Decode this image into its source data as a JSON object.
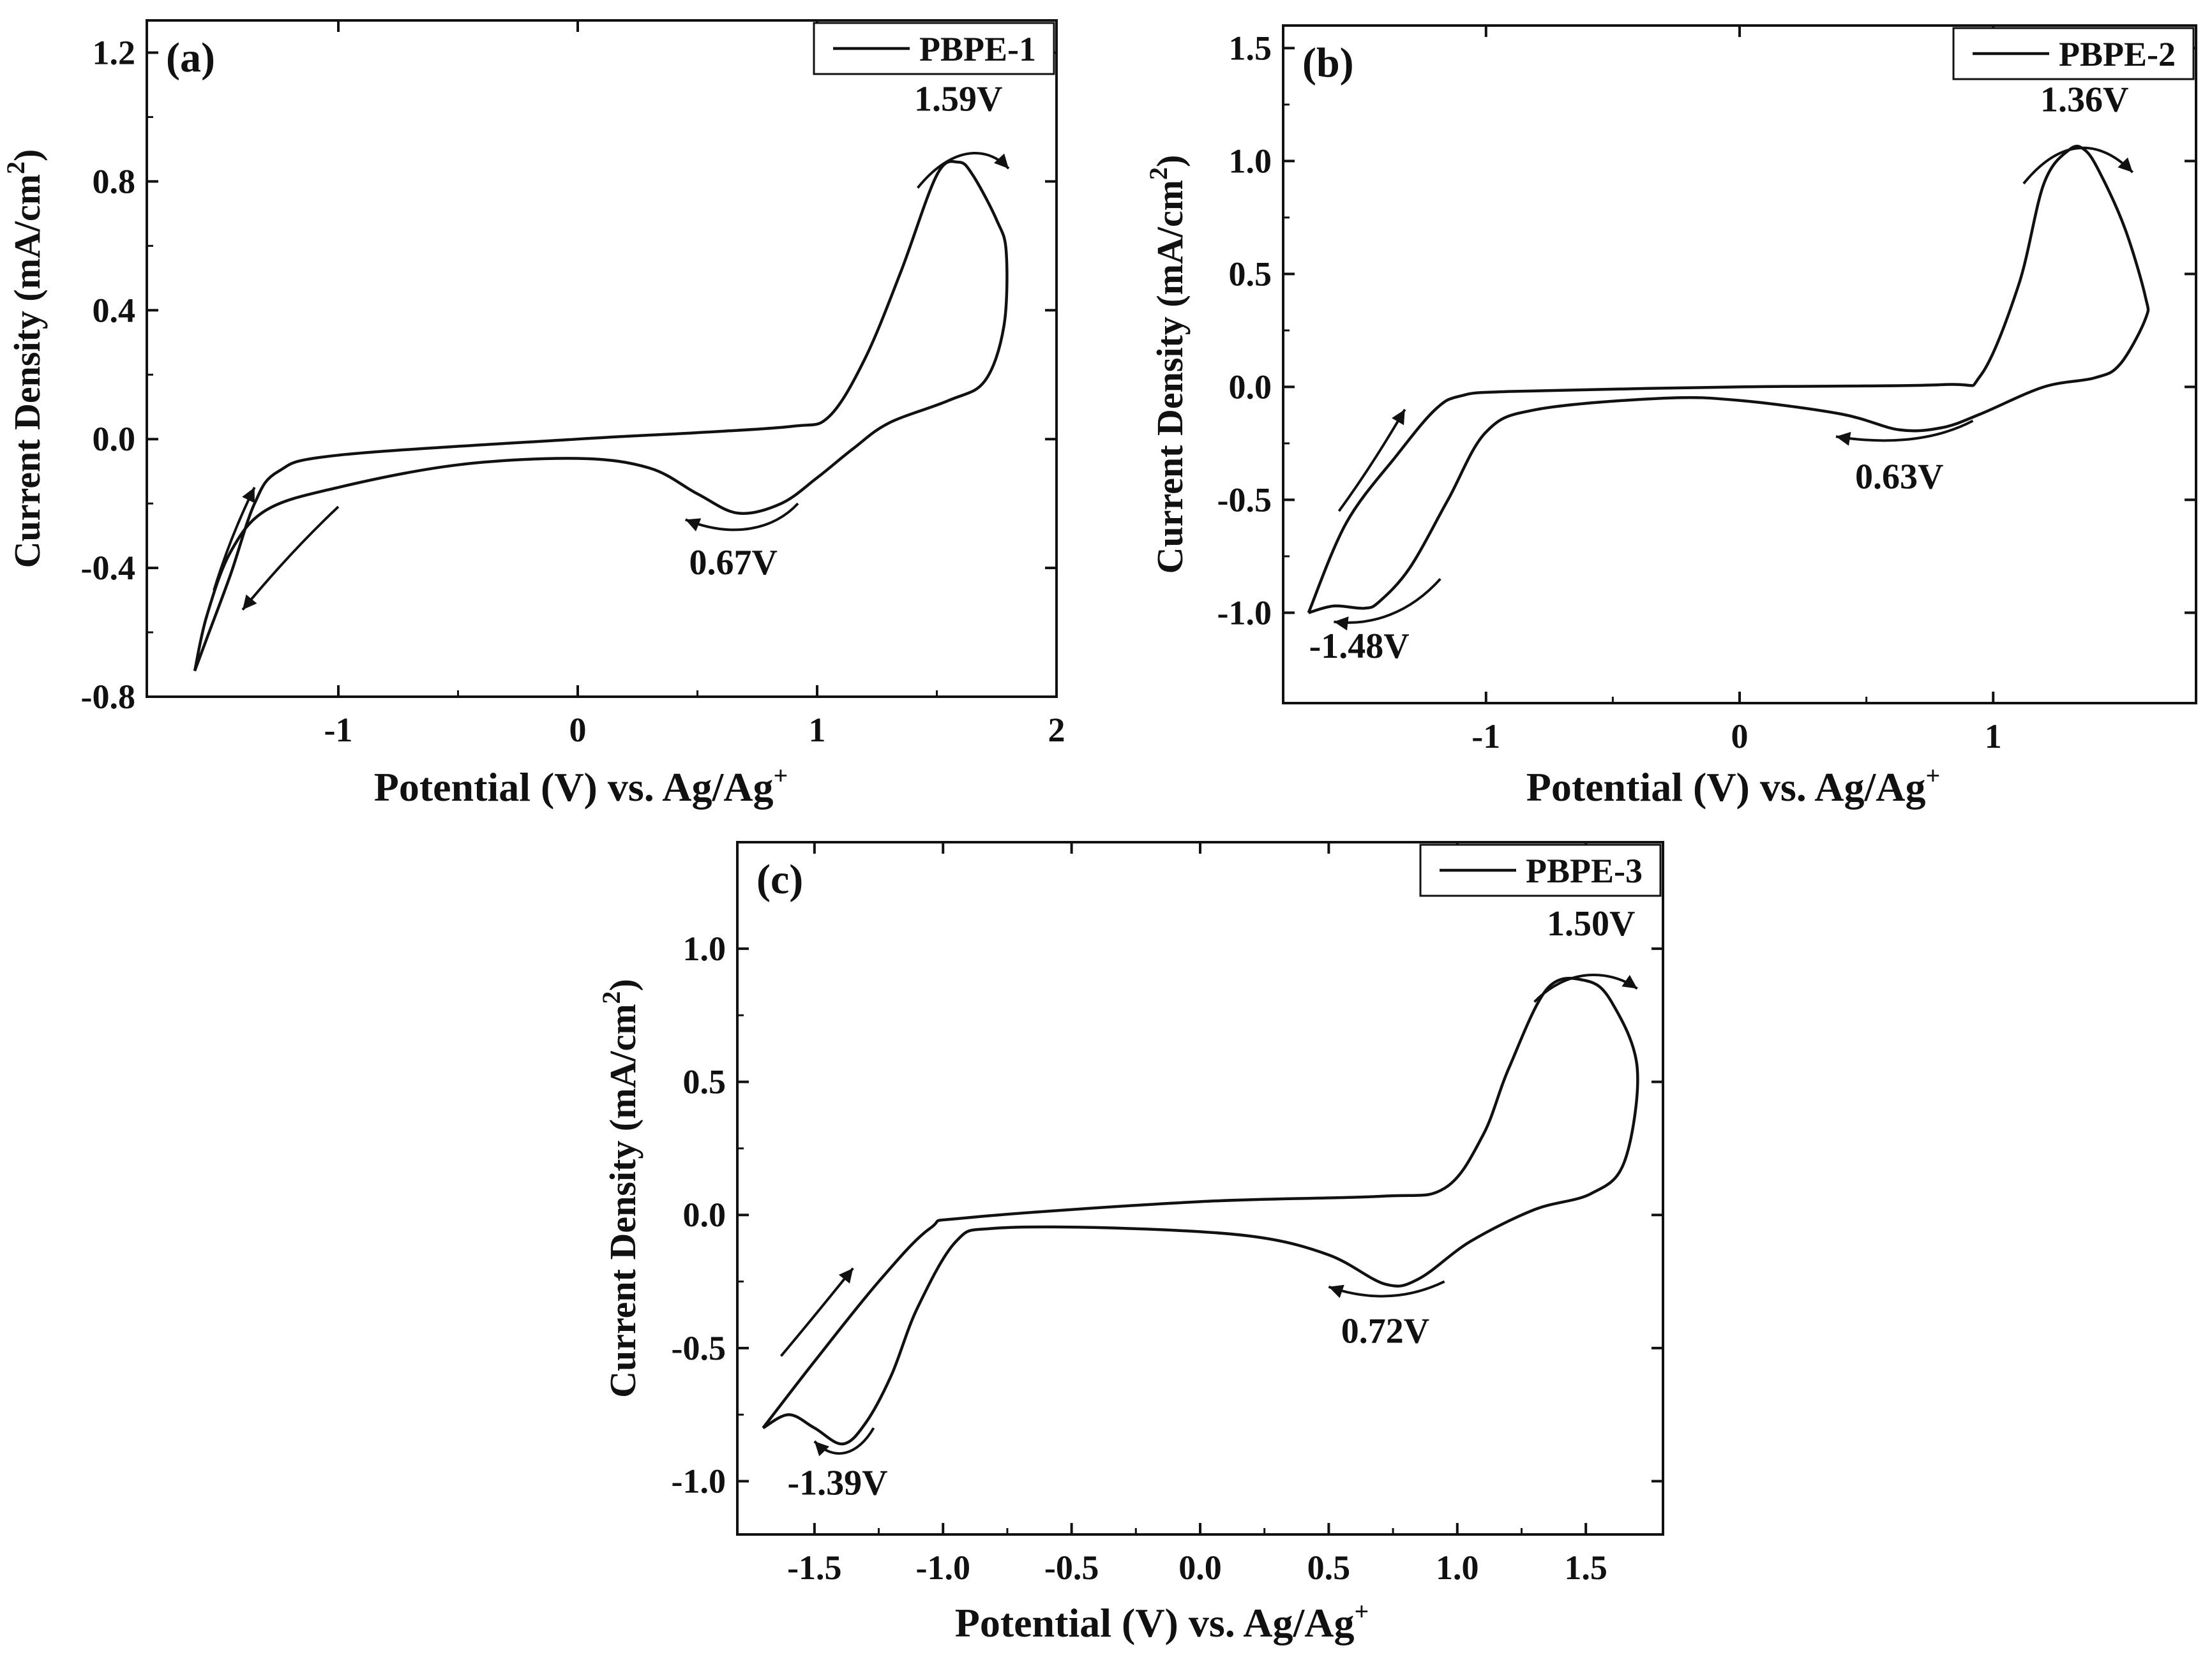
{
  "chart_data": [
    {
      "id": "a",
      "type": "line",
      "panel_label": "(a)",
      "legend": "PBPE-1",
      "legend_position": "top-right",
      "xlabel": "Potential (V) vs. Ag/Ag",
      "xlabel_sup": "+",
      "ylabel": "Current Density  (mA/cm",
      "ylabel_sup": "2",
      "ylabel_end": ")",
      "xlim": [
        -1.8,
        2.0
      ],
      "ylim": [
        -0.8,
        1.3
      ],
      "xticks": [
        -1,
        0,
        1,
        2
      ],
      "xtick_labels": [
        "-1",
        "0",
        "1",
        "2"
      ],
      "yticks": [
        -0.8,
        -0.4,
        0.0,
        0.4,
        0.8,
        1.2
      ],
      "ytick_labels": [
        "-0.8",
        "-0.4",
        "0.0",
        "0.4",
        "0.8",
        "1.2"
      ],
      "series": [
        {
          "name": "PBPE-1",
          "x": [
            -1.6,
            -1.55,
            -1.45,
            -1.35,
            -1.25,
            -1.0,
            0.0,
            0.5,
            0.9,
            1.05,
            1.2,
            1.35,
            1.5,
            1.59,
            1.65,
            1.75,
            1.79,
            1.78,
            1.7,
            1.55,
            1.3,
            1.15,
            1.0,
            0.85,
            0.67,
            0.5,
            0.3,
            0.0,
            -0.5,
            -1.0,
            -1.3,
            -1.45,
            -1.55,
            -1.6
          ],
          "y": [
            -0.72,
            -0.62,
            -0.42,
            -0.2,
            -0.1,
            -0.05,
            0.0,
            0.02,
            0.04,
            0.07,
            0.25,
            0.52,
            0.82,
            0.86,
            0.82,
            0.68,
            0.58,
            0.35,
            0.18,
            0.12,
            0.05,
            -0.03,
            -0.12,
            -0.2,
            -0.23,
            -0.17,
            -0.09,
            -0.06,
            -0.08,
            -0.15,
            -0.22,
            -0.35,
            -0.55,
            -0.72
          ]
        }
      ],
      "annotations": [
        {
          "text": "1.59V",
          "x": 1.59,
          "y": 1.02
        },
        {
          "text": "0.67V",
          "x": 0.65,
          "y": -0.42
        }
      ],
      "arrows": [
        {
          "points": [
            [
              1.42,
              0.78
            ],
            [
              1.55,
              0.9
            ],
            [
              1.7,
              0.92
            ],
            [
              1.8,
              0.84
            ]
          ],
          "head": "end"
        },
        {
          "points": [
            [
              0.92,
              -0.2
            ],
            [
              0.82,
              -0.28
            ],
            [
              0.65,
              -0.31
            ],
            [
              0.45,
              -0.25
            ]
          ],
          "head": "end"
        },
        {
          "points": [
            [
              -1.52,
              -0.47
            ],
            [
              -1.45,
              -0.3
            ],
            [
              -1.35,
              -0.15
            ]
          ],
          "head": "end"
        },
        {
          "points": [
            [
              -1.0,
              -0.21
            ],
            [
              -1.2,
              -0.35
            ],
            [
              -1.4,
              -0.53
            ]
          ],
          "head": "end"
        }
      ]
    },
    {
      "id": "b",
      "type": "line",
      "panel_label": "(b)",
      "legend": "PBPE-2",
      "legend_position": "top-right",
      "xlabel": "Potential (V) vs. Ag/Ag",
      "xlabel_sup": "+",
      "ylabel": "Current Density  (mA/cm",
      "ylabel_sup": "2",
      "ylabel_end": ")",
      "xlim": [
        -1.8,
        1.8
      ],
      "ylim": [
        -1.4,
        1.6
      ],
      "xticks": [
        -1,
        0,
        1
      ],
      "xtick_labels": [
        "-1",
        "0",
        "1"
      ],
      "yticks": [
        -1.0,
        -0.5,
        0.0,
        0.5,
        1.0,
        1.5
      ],
      "ytick_labels": [
        "-1.0",
        "-0.5",
        "0.0",
        "0.5",
        "1.0",
        "1.5"
      ],
      "series": [
        {
          "name": "PBPE-2",
          "x": [
            -1.7,
            -1.55,
            -1.35,
            -1.2,
            -1.1,
            -0.9,
            0.0,
            0.8,
            0.95,
            1.1,
            1.2,
            1.3,
            1.36,
            1.42,
            1.52,
            1.6,
            1.6,
            1.5,
            1.4,
            1.2,
            0.95,
            0.8,
            0.63,
            0.4,
            0.0,
            -0.3,
            -0.8,
            -1.0,
            -1.15,
            -1.3,
            -1.42,
            -1.48,
            -1.6,
            -1.7
          ],
          "y": [
            -1.0,
            -0.6,
            -0.3,
            -0.1,
            -0.04,
            -0.02,
            0.0,
            0.01,
            0.05,
            0.45,
            0.9,
            1.05,
            1.05,
            0.95,
            0.7,
            0.4,
            0.3,
            0.1,
            0.04,
            0.0,
            -0.12,
            -0.18,
            -0.19,
            -0.12,
            -0.06,
            -0.05,
            -0.1,
            -0.2,
            -0.5,
            -0.8,
            -0.95,
            -0.98,
            -0.97,
            -1.0
          ]
        }
      ],
      "annotations": [
        {
          "text": "1.36V",
          "x": 1.36,
          "y": 1.22
        },
        {
          "text": "0.63V",
          "x": 0.63,
          "y": -0.45
        },
        {
          "text": "-1.48V",
          "x": -1.5,
          "y": -1.2
        }
      ],
      "arrows": [
        {
          "points": [
            [
              1.12,
              0.9
            ],
            [
              1.25,
              1.08
            ],
            [
              1.4,
              1.12
            ],
            [
              1.55,
              0.95
            ]
          ],
          "head": "end"
        },
        {
          "points": [
            [
              0.92,
              -0.15
            ],
            [
              0.75,
              -0.25
            ],
            [
              0.55,
              -0.25
            ],
            [
              0.38,
              -0.22
            ]
          ],
          "head": "end"
        },
        {
          "points": [
            [
              -1.58,
              -0.55
            ],
            [
              -1.45,
              -0.35
            ],
            [
              -1.32,
              -0.1
            ]
          ],
          "head": "end"
        },
        {
          "points": [
            [
              -1.18,
              -0.85
            ],
            [
              -1.3,
              -1.0
            ],
            [
              -1.45,
              -1.06
            ],
            [
              -1.6,
              -1.04
            ]
          ],
          "head": "end"
        }
      ]
    },
    {
      "id": "c",
      "type": "line",
      "panel_label": "(c)",
      "legend": "PBPE-3",
      "legend_position": "top-right",
      "xlabel": "Potential (V) vs. Ag/Ag",
      "xlabel_sup": "+",
      "ylabel": "Current Density  (mA/cm",
      "ylabel_sup": "2",
      "ylabel_end": ")",
      "xlim": [
        -1.8,
        1.8
      ],
      "ylim": [
        -1.2,
        1.4
      ],
      "xticks": [
        -1.5,
        -1.0,
        -0.5,
        0.0,
        0.5,
        1.0,
        1.5
      ],
      "xtick_labels": [
        "-1.5",
        "-1.0",
        "-0.5",
        "0.0",
        "0.5",
        "1.0",
        "1.5"
      ],
      "yticks": [
        -1.0,
        -0.5,
        0.0,
        0.5,
        1.0
      ],
      "ytick_labels": [
        "-1.0",
        "-0.5",
        "0.0",
        "0.5",
        "1.0"
      ],
      "series": [
        {
          "name": "PBPE-3",
          "x": [
            -1.7,
            -1.5,
            -1.25,
            -1.05,
            -0.9,
            0.0,
            0.7,
            0.95,
            1.1,
            1.2,
            1.35,
            1.5,
            1.6,
            1.7,
            1.65,
            1.52,
            1.3,
            1.05,
            0.85,
            0.72,
            0.5,
            0.2,
            -0.3,
            -0.8,
            -0.95,
            -1.1,
            -1.2,
            -1.3,
            -1.39,
            -1.5,
            -1.6,
            -1.7
          ],
          "y": [
            -0.8,
            -0.55,
            -0.25,
            -0.05,
            -0.01,
            0.05,
            0.07,
            0.1,
            0.3,
            0.55,
            0.85,
            0.88,
            0.8,
            0.55,
            0.2,
            0.08,
            0.02,
            -0.1,
            -0.24,
            -0.26,
            -0.15,
            -0.08,
            -0.05,
            -0.05,
            -0.1,
            -0.35,
            -0.6,
            -0.78,
            -0.86,
            -0.8,
            -0.75,
            -0.8
          ]
        }
      ],
      "annotations": [
        {
          "text": "1.50V",
          "x": 1.52,
          "y": 1.05
        },
        {
          "text": "0.72V",
          "x": 0.72,
          "y": -0.48
        },
        {
          "text": "-1.39V",
          "x": -1.41,
          "y": -1.05
        }
      ],
      "arrows": [
        {
          "points": [
            [
              1.3,
              0.8
            ],
            [
              1.42,
              0.92
            ],
            [
              1.58,
              0.93
            ],
            [
              1.7,
              0.85
            ]
          ],
          "head": "end"
        },
        {
          "points": [
            [
              0.95,
              -0.25
            ],
            [
              0.8,
              -0.32
            ],
            [
              0.65,
              -0.32
            ],
            [
              0.5,
              -0.27
            ]
          ],
          "head": "end"
        },
        {
          "points": [
            [
              -1.63,
              -0.53
            ],
            [
              -1.5,
              -0.38
            ],
            [
              -1.35,
              -0.2
            ]
          ],
          "head": "end"
        },
        {
          "points": [
            [
              -1.27,
              -0.8
            ],
            [
              -1.33,
              -0.9
            ],
            [
              -1.42,
              -0.93
            ],
            [
              -1.5,
              -0.85
            ]
          ],
          "head": "end"
        }
      ]
    }
  ]
}
